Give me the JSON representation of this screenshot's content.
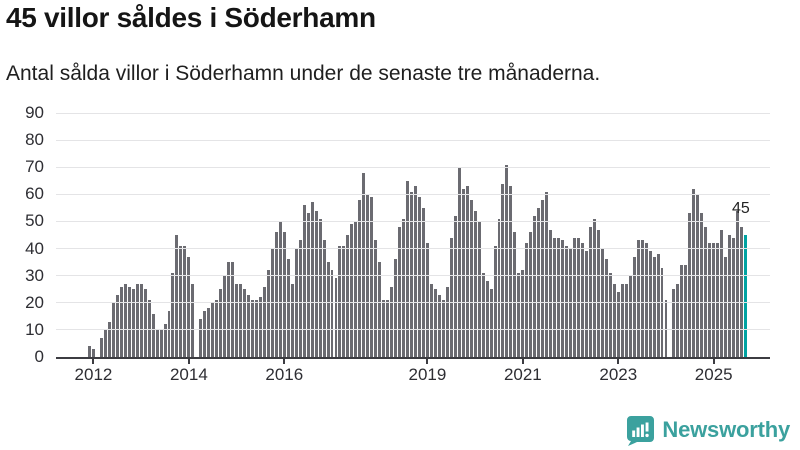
{
  "header": {
    "title": "45 villor såldes i Söderhamn",
    "subtitle": "Antal sålda villor i Söderhamn under de senaste tre månaderna."
  },
  "chart_data": {
    "type": "bar",
    "title": "45 villor såldes i Söderhamn",
    "subtitle": "Antal sålda villor i Söderhamn under de senaste tre månaderna.",
    "ylabel": "Antal sålda villor",
    "xlabel": "",
    "ylim": [
      0,
      90
    ],
    "grid": true,
    "y_ticks": [
      0,
      10,
      20,
      30,
      40,
      50,
      60,
      70,
      80,
      90
    ],
    "x_tick_labels": [
      "2012",
      "2014",
      "2016",
      "2019",
      "2021",
      "2023",
      "2025"
    ],
    "x_tick_indices": [
      1,
      25,
      49,
      85,
      109,
      133,
      157
    ],
    "bar_color": "#6b6b71",
    "highlight": {
      "index": 165,
      "label": "45",
      "value": 45,
      "color": "#00a3a2"
    },
    "values": [
      4,
      3,
      0,
      7,
      10,
      13,
      20,
      23,
      26,
      27,
      26,
      25,
      27,
      27,
      25,
      21,
      16,
      10,
      10,
      12,
      17,
      31,
      45,
      41,
      41,
      37,
      27,
      0,
      14,
      17,
      18,
      20,
      21,
      25,
      30,
      35,
      35,
      27,
      27,
      25,
      23,
      21,
      21,
      22,
      26,
      32,
      40,
      46,
      50,
      46,
      36,
      27,
      40,
      43,
      56,
      53,
      57,
      54,
      51,
      43,
      35,
      32,
      29,
      41,
      41,
      45,
      49,
      50,
      58,
      68,
      60,
      59,
      43,
      35,
      21,
      21,
      26,
      36,
      48,
      51,
      65,
      61,
      63,
      59,
      55,
      42,
      27,
      25,
      23,
      21,
      26,
      44,
      52,
      70,
      62,
      63,
      58,
      54,
      50,
      31,
      28,
      25,
      41,
      51,
      64,
      71,
      63,
      46,
      31,
      32,
      42,
      46,
      52,
      55,
      58,
      61,
      47,
      44,
      44,
      43,
      41,
      40,
      44,
      44,
      42,
      39,
      48,
      51,
      47,
      40,
      36,
      31,
      27,
      24,
      27,
      27,
      30,
      37,
      43,
      43,
      42,
      39,
      37,
      38,
      33,
      21,
      0,
      25,
      27,
      34,
      34,
      53,
      62,
      60,
      53,
      48,
      42,
      42,
      42,
      47,
      37,
      45,
      44,
      54,
      48,
      45
    ]
  },
  "footer": {
    "brand": "Newsworthy",
    "brand_color": "#3ba19e",
    "logo_icon": "newsworthy-bar-chart-bubble-icon"
  }
}
